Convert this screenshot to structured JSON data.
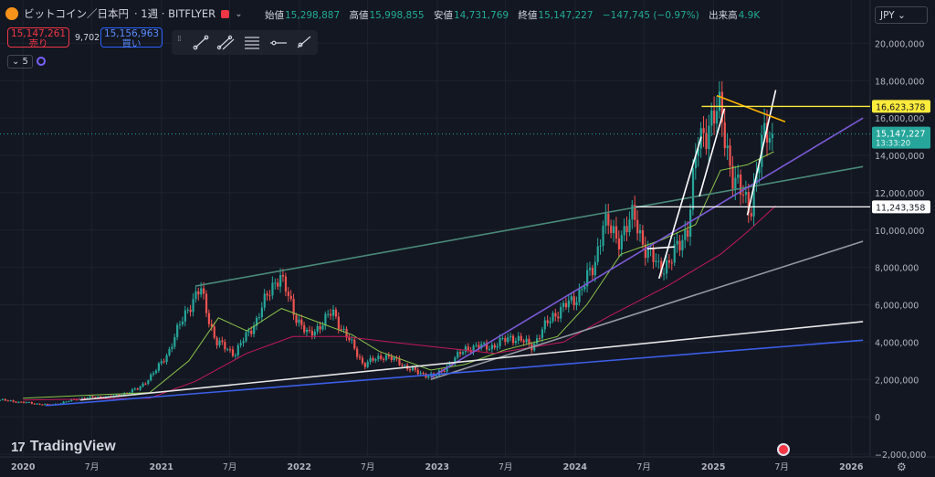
{
  "header": {
    "symbol": "ビットコイン／日本円",
    "interval": "· 1週 · BITFLYER",
    "chevron": "⌄"
  },
  "ohlc": {
    "open_label": "始値",
    "open": "15,298,887",
    "high_label": "高値",
    "high": "15,998,855",
    "low_label": "安値",
    "low": "14,731,769",
    "close_label": "終値",
    "close": "15,147,227",
    "change": "−147,745 (−0.97%)",
    "volume_label": "出来高",
    "volume": "4.9K"
  },
  "trade": {
    "sell_price": "15,147,261",
    "sell_label": "売り",
    "spread": "9,702",
    "buy_price": "15,156,963",
    "buy_label": "買い"
  },
  "indicator": {
    "label": "⌄ 5"
  },
  "currency": {
    "label": "JPY ⌄"
  },
  "branding": {
    "name": "TradingView"
  },
  "toolbar_icons": [
    "trend-line-icon",
    "parallel-channel-icon",
    "fib-retracement-icon",
    "horizontal-line-icon",
    "ray-icon"
  ],
  "colors": {
    "background": "#131722",
    "up": "#26a69a",
    "down": "#ef5350",
    "ma_short": "#8bc34a",
    "ma_long": "#c2185b",
    "grid": "#1e222d"
  },
  "chart_data": {
    "type": "candlestick",
    "title": "ビットコイン／日本円 · 1週 · BITFLYER",
    "ylim": [
      -2000000,
      21000000
    ],
    "xlim": [
      "2019-11-01",
      "2026-02-20"
    ],
    "y_ticks": [
      -2000000,
      0,
      2000000,
      4000000,
      6000000,
      8000000,
      10000000,
      12000000,
      14000000,
      16000000,
      18000000,
      20000000
    ],
    "y_tick_labels": [
      "−2,000,000",
      "0",
      "2,000,000",
      "4,000,000",
      "6,000,000",
      "8,000,000",
      "10,000,000",
      "12,000,000",
      "14,000,000",
      "16,000,000",
      "18,000,000",
      "20,000,000"
    ],
    "x_ticks": [
      {
        "date": "2020-01-01",
        "label": "2020",
        "bold": true
      },
      {
        "date": "2020-07-01",
        "label": "7月",
        "bold": false
      },
      {
        "date": "2021-01-01",
        "label": "2021",
        "bold": true
      },
      {
        "date": "2021-07-01",
        "label": "7月",
        "bold": false
      },
      {
        "date": "2022-01-01",
        "label": "2022",
        "bold": true
      },
      {
        "date": "2022-07-01",
        "label": "7月",
        "bold": false
      },
      {
        "date": "2023-01-01",
        "label": "2023",
        "bold": true
      },
      {
        "date": "2023-07-01",
        "label": "7月",
        "bold": false
      },
      {
        "date": "2024-01-01",
        "label": "2024",
        "bold": true
      },
      {
        "date": "2024-07-01",
        "label": "7月",
        "bold": false
      },
      {
        "date": "2025-01-01",
        "label": "2025",
        "bold": true
      },
      {
        "date": "2025-07-01",
        "label": "7月",
        "bold": false
      },
      {
        "date": "2026-01-01",
        "label": "2026",
        "bold": true
      }
    ],
    "close_path": [
      [
        "2019-11-01",
        900000
      ],
      [
        "2020-03-15",
        620000
      ],
      [
        "2020-06-01",
        1000000
      ],
      [
        "2020-09-01",
        1100000
      ],
      [
        "2020-11-01",
        1500000
      ],
      [
        "2020-12-15",
        2400000
      ],
      [
        "2021-01-20",
        3500000
      ],
      [
        "2021-03-10",
        5800000
      ],
      [
        "2021-04-15",
        6800000
      ],
      [
        "2021-05-25",
        4000000
      ],
      [
        "2021-07-15",
        3400000
      ],
      [
        "2021-09-10",
        5200000
      ],
      [
        "2021-10-25",
        7200000
      ],
      [
        "2021-11-10",
        7600000
      ],
      [
        "2021-12-20",
        5500000
      ],
      [
        "2022-01-25",
        4300000
      ],
      [
        "2022-03-30",
        5600000
      ],
      [
        "2022-05-10",
        4200000
      ],
      [
        "2022-06-20",
        2800000
      ],
      [
        "2022-08-15",
        3300000
      ],
      [
        "2022-10-01",
        2800000
      ],
      [
        "2022-11-15",
        2300000
      ],
      [
        "2022-12-31",
        2200000
      ],
      [
        "2023-03-20",
        3700000
      ],
      [
        "2023-06-01",
        3800000
      ],
      [
        "2023-07-15",
        4300000
      ],
      [
        "2023-09-10",
        3800000
      ],
      [
        "2023-11-01",
        5400000
      ],
      [
        "2023-12-31",
        6300000
      ],
      [
        "2024-02-20",
        8000000
      ],
      [
        "2024-03-15",
        10500000
      ],
      [
        "2024-04-20",
        9500000
      ],
      [
        "2024-06-05",
        10700000
      ],
      [
        "2024-07-10",
        8800000
      ],
      [
        "2024-08-10",
        8000000
      ],
      [
        "2024-09-10",
        8300000
      ],
      [
        "2024-10-25",
        10200000
      ],
      [
        "2024-11-20",
        14500000
      ],
      [
        "2024-12-20",
        15800000
      ],
      [
        "2025-01-20",
        16300000
      ],
      [
        "2025-02-25",
        12500000
      ],
      [
        "2025-04-10",
        11300000
      ],
      [
        "2025-05-20",
        15500000
      ],
      [
        "2025-06-10",
        15147227
      ]
    ],
    "moving_averages": [
      {
        "color": "#8bc34a",
        "points": [
          [
            "2020-01-01",
            1000000
          ],
          [
            "2020-12-01",
            1300000
          ],
          [
            "2021-03-15",
            3000000
          ],
          [
            "2021-06-01",
            5300000
          ],
          [
            "2021-08-15",
            4600000
          ],
          [
            "2021-11-15",
            5800000
          ],
          [
            "2022-03-01",
            5000000
          ],
          [
            "2022-05-20",
            4400000
          ],
          [
            "2022-08-01",
            3500000
          ],
          [
            "2022-12-15",
            2500000
          ],
          [
            "2023-03-15",
            2800000
          ],
          [
            "2023-07-01",
            3600000
          ],
          [
            "2023-11-15",
            4300000
          ],
          [
            "2024-02-01",
            6000000
          ],
          [
            "2024-05-01",
            8700000
          ],
          [
            "2024-08-20",
            9500000
          ],
          [
            "2024-11-15",
            10300000
          ],
          [
            "2025-01-20",
            13200000
          ],
          [
            "2025-04-01",
            13500000
          ],
          [
            "2025-06-10",
            14200000
          ]
        ]
      },
      {
        "color": "#c2185b",
        "points": [
          [
            "2020-01-01",
            900000
          ],
          [
            "2020-12-01",
            1000000
          ],
          [
            "2021-04-01",
            1900000
          ],
          [
            "2021-08-15",
            3400000
          ],
          [
            "2021-12-15",
            4300000
          ],
          [
            "2022-05-01",
            4300000
          ],
          [
            "2022-09-01",
            4000000
          ],
          [
            "2023-01-15",
            3700000
          ],
          [
            "2023-06-01",
            3400000
          ],
          [
            "2023-12-01",
            4000000
          ],
          [
            "2024-04-01",
            5400000
          ],
          [
            "2024-09-01",
            7000000
          ],
          [
            "2025-01-20",
            8700000
          ],
          [
            "2025-04-01",
            9900000
          ],
          [
            "2025-06-15",
            11300000
          ]
        ]
      }
    ],
    "trend_lines": [
      {
        "color": "#4a8a7a",
        "points": [
          [
            "2021-04-01",
            7000000
          ],
          [
            "2026-02-01",
            13400000
          ]
        ]
      },
      {
        "color": "#7b5ad6",
        "points": [
          [
            "2022-12-15",
            2100000
          ],
          [
            "2026-02-01",
            16000000
          ]
        ]
      },
      {
        "color": "#9598a1",
        "points": [
          [
            "2022-12-15",
            2000000
          ],
          [
            "2026-02-01",
            9400000
          ]
        ]
      },
      {
        "color": "#e6e6e6",
        "points": [
          [
            "2020-06-01",
            900000
          ],
          [
            "2026-02-01",
            5100000
          ]
        ]
      },
      {
        "color": "#3b5ee8",
        "points": [
          [
            "2020-03-01",
            600000
          ],
          [
            "2026-02-01",
            4100000
          ]
        ]
      },
      {
        "color": "#ffffff",
        "points": [
          [
            "2024-07-10",
            9000000
          ],
          [
            "2024-09-20",
            9100000
          ]
        ]
      },
      {
        "color": "#ffffff",
        "points": [
          [
            "2024-08-10",
            7400000
          ],
          [
            "2024-11-30",
            15000000
          ]
        ]
      },
      {
        "color": "#ffffff",
        "points": [
          [
            "2024-11-25",
            11800000
          ],
          [
            "2025-01-30",
            16500000
          ]
        ]
      },
      {
        "color": "#ffffff",
        "points": [
          [
            "2025-04-01",
            10800000
          ],
          [
            "2025-06-15",
            17500000
          ]
        ]
      },
      {
        "color": "#ffb300",
        "points": [
          [
            "2025-01-10",
            17200000
          ],
          [
            "2025-07-10",
            15800000
          ]
        ]
      }
    ],
    "horizontal_levels": [
      {
        "value": 16623378,
        "label": "16,623,378",
        "color": "#ffeb3b",
        "text_color": "#131722",
        "line_color": "#ffeb3b",
        "from": "2024-12-01"
      },
      {
        "value": 11243358,
        "label": "11,243,358",
        "color": "#ffffff",
        "text_color": "#131722",
        "line_color": "#ffffff",
        "from": "2024-06-10"
      }
    ],
    "last_price": {
      "value": 15147227,
      "label": "15,147,227",
      "time": "13:33:20",
      "color": "#26a69a"
    }
  }
}
